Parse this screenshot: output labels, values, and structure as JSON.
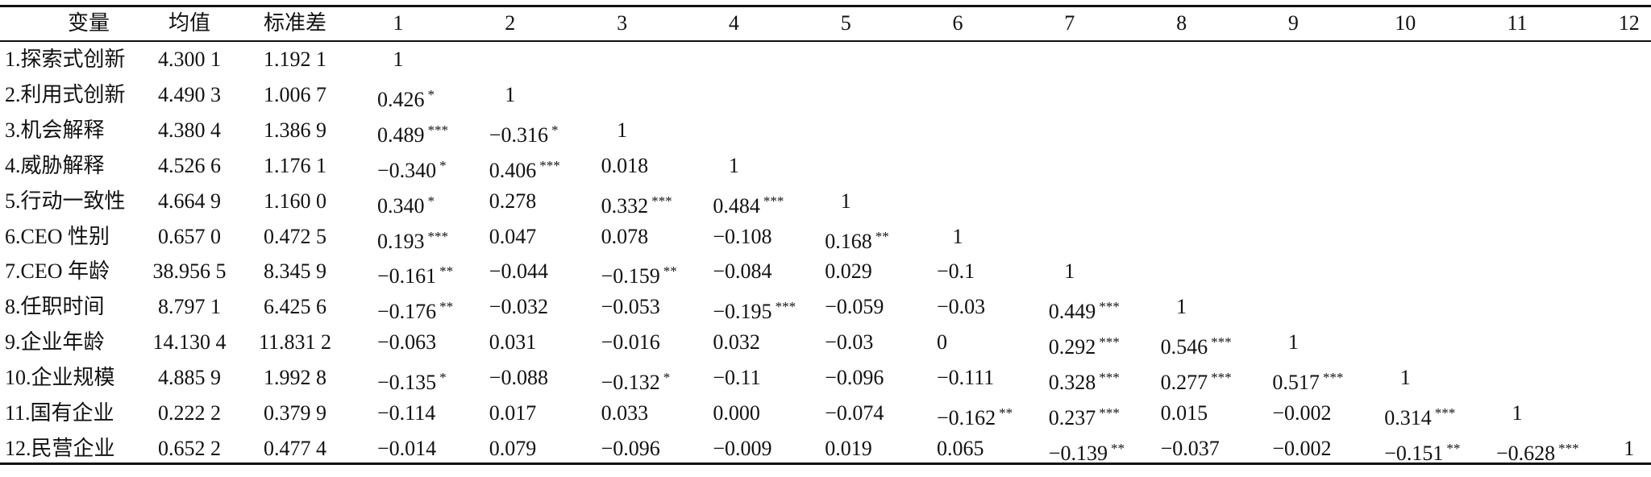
{
  "table": {
    "header": [
      "变量",
      "均值",
      "标准差",
      "1",
      "2",
      "3",
      "4",
      "5",
      "6",
      "7",
      "8",
      "9",
      "10",
      "11",
      "12"
    ],
    "rows": [
      {
        "label": "1.探索式创新",
        "mean": "4.300 1",
        "sd": "1.192 1",
        "cells": [
          "1"
        ]
      },
      {
        "label": "2.利用式创新",
        "mean": "4.490 3",
        "sd": "1.006 7",
        "cells": [
          {
            "value": "0.426",
            "sig": "*"
          },
          "1"
        ]
      },
      {
        "label": "3.机会解释",
        "mean": "4.380 4",
        "sd": "1.386 9",
        "cells": [
          {
            "value": "0.489",
            "sig": "***"
          },
          {
            "value": "−0.316",
            "sig": "*"
          },
          "1"
        ]
      },
      {
        "label": "4.威胁解释",
        "mean": "4.526 6",
        "sd": "1.176 1",
        "cells": [
          {
            "value": "−0.340",
            "sig": "*"
          },
          {
            "value": "0.406",
            "sig": "***"
          },
          "0.018",
          "1"
        ]
      },
      {
        "label": "5.行动一致性",
        "mean": "4.664 9",
        "sd": "1.160 0",
        "cells": [
          {
            "value": "0.340",
            "sig": "*"
          },
          "0.278",
          {
            "value": "0.332",
            "sig": "***"
          },
          {
            "value": "0.484",
            "sig": "***"
          },
          "1"
        ]
      },
      {
        "label": "6.CEO 性别",
        "mean": "0.657 0",
        "sd": "0.472 5",
        "cells": [
          {
            "value": "0.193",
            "sig": "***"
          },
          "0.047",
          "0.078",
          "−0.108",
          {
            "value": "0.168",
            "sig": "**"
          },
          "1"
        ]
      },
      {
        "label": "7.CEO 年龄",
        "mean": "38.956 5",
        "sd": "8.345 9",
        "cells": [
          {
            "value": "−0.161",
            "sig": "**"
          },
          "−0.044",
          {
            "value": "−0.159",
            "sig": "**"
          },
          "−0.084",
          "0.029",
          "−0.1",
          "1"
        ]
      },
      {
        "label": "8.任职时间",
        "mean": "8.797 1",
        "sd": "6.425 6",
        "cells": [
          {
            "value": "−0.176",
            "sig": "**"
          },
          "−0.032",
          "−0.053",
          {
            "value": "−0.195",
            "sig": "***"
          },
          "−0.059",
          "−0.03",
          {
            "value": "0.449",
            "sig": "***"
          },
          "1"
        ]
      },
      {
        "label": "9.企业年龄",
        "mean": "14.130 4",
        "sd": "11.831 2",
        "cells": [
          "−0.063",
          "0.031",
          "−0.016",
          "0.032",
          "−0.03",
          "0",
          {
            "value": "0.292",
            "sig": "***"
          },
          {
            "value": "0.546",
            "sig": "***"
          },
          "1"
        ]
      },
      {
        "label": "10.企业规模",
        "mean": "4.885 9",
        "sd": "1.992 8",
        "cells": [
          {
            "value": "−0.135",
            "sig": "*"
          },
          "−0.088",
          {
            "value": "−0.132",
            "sig": "*"
          },
          "−0.11",
          "−0.096",
          "−0.111",
          {
            "value": "0.328",
            "sig": "***"
          },
          {
            "value": "0.277",
            "sig": "***"
          },
          {
            "value": "0.517",
            "sig": "***"
          },
          "1"
        ]
      },
      {
        "label": "11.国有企业",
        "mean": "0.222 2",
        "sd": "0.379 9",
        "cells": [
          "−0.114",
          "0.017",
          "0.033",
          "0.000",
          "−0.074",
          {
            "value": "−0.162",
            "sig": "**"
          },
          {
            "value": "0.237",
            "sig": "***"
          },
          "0.015",
          "−0.002",
          {
            "value": "0.314",
            "sig": "***"
          },
          "1"
        ]
      },
      {
        "label": "12.民营企业",
        "mean": "0.652 2",
        "sd": "0.477 4",
        "cells": [
          "−0.014",
          "0.079",
          "−0.096",
          "−0.009",
          "0.019",
          "0.065",
          {
            "value": "−0.139",
            "sig": "**"
          },
          "−0.037",
          "−0.002",
          {
            "value": "−0.151",
            "sig": "**"
          },
          {
            "value": "−0.628",
            "sig": "***"
          },
          "1"
        ]
      }
    ]
  }
}
